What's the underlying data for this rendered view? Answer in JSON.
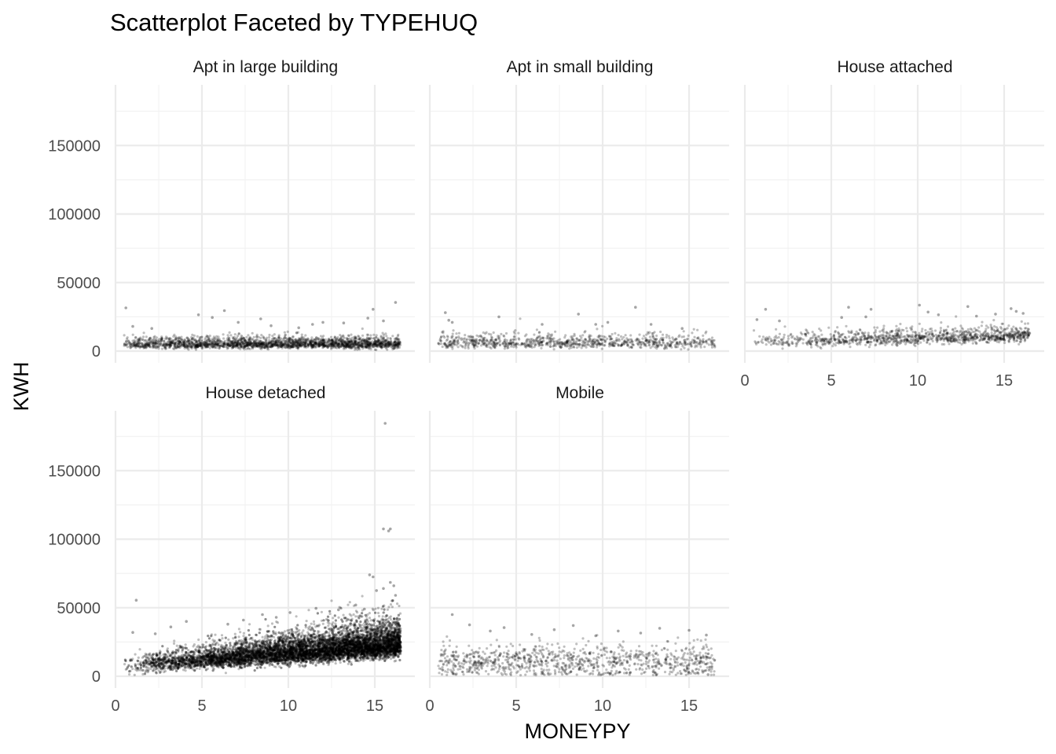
{
  "chart_data": {
    "type": "scatter",
    "title": "Scatterplot Faceted by TYPEHUQ",
    "xlabel": "MONEYPY",
    "ylabel": "KWH",
    "xlim": [
      0,
      17.5
    ],
    "ylim": [
      0,
      190000
    ],
    "x_ticks": [
      0,
      5,
      10,
      15
    ],
    "y_ticks": [
      0,
      50000,
      100000,
      150000
    ],
    "grid": true,
    "point_color": "#000000",
    "point_alpha": 0.25,
    "facets": [
      {
        "name": "Apt in large building",
        "approx_n_points": 2200,
        "x_range": [
          0.5,
          16.5
        ],
        "kwh_typical": 5500,
        "points": [
          [
            0.6,
            31500
          ],
          [
            4.8,
            26500
          ],
          [
            5.6,
            24500
          ],
          [
            6.3,
            29500
          ],
          [
            8.4,
            23500
          ],
          [
            12.0,
            21000
          ],
          [
            14.6,
            24000
          ],
          [
            14.9,
            30500
          ],
          [
            16.2,
            35500
          ],
          [
            11.4,
            19500
          ],
          [
            13.2,
            20500
          ],
          [
            9.0,
            18500
          ],
          [
            2.1,
            16500
          ],
          [
            1.0,
            18000
          ],
          [
            7.1,
            21000
          ],
          [
            15.5,
            22000
          ],
          [
            10.6,
            17000
          ]
        ]
      },
      {
        "name": "Apt in small building",
        "approx_n_points": 900,
        "x_range": [
          0.5,
          16.5
        ],
        "kwh_typical": 6500,
        "points": [
          [
            0.9,
            28000
          ],
          [
            1.1,
            22500
          ],
          [
            4.0,
            25000
          ],
          [
            8.6,
            27000
          ],
          [
            11.9,
            32000
          ],
          [
            12.8,
            19500
          ],
          [
            10.3,
            21000
          ],
          [
            14.6,
            16500
          ],
          [
            6.5,
            19500
          ],
          [
            1.3,
            21000
          ],
          [
            9.6,
            19500
          ]
        ]
      },
      {
        "name": "House attached",
        "approx_n_points": 1100,
        "x_range": [
          0.5,
          16.5
        ],
        "kwh_typical": 8500,
        "points": [
          [
            0.7,
            23000
          ],
          [
            1.2,
            30500
          ],
          [
            2.0,
            22000
          ],
          [
            5.6,
            24500
          ],
          [
            6.0,
            32000
          ],
          [
            7.0,
            25000
          ],
          [
            7.3,
            30500
          ],
          [
            10.1,
            33500
          ],
          [
            10.6,
            28500
          ],
          [
            12.9,
            32500
          ],
          [
            14.5,
            27000
          ],
          [
            15.4,
            31000
          ],
          [
            15.7,
            29000
          ],
          [
            16.1,
            27500
          ],
          [
            13.4,
            25500
          ],
          [
            11.2,
            26500
          ]
        ]
      },
      {
        "name": "House detached",
        "approx_n_points": 9000,
        "x_range": [
          0.5,
          16.5
        ],
        "kwh_typical": 12000,
        "points": [
          [
            1.2,
            55500
          ],
          [
            15.6,
            184500
          ],
          [
            15.5,
            107500
          ],
          [
            15.8,
            106000
          ],
          [
            15.9,
            107500
          ],
          [
            14.7,
            74000
          ],
          [
            14.9,
            72500
          ],
          [
            15.1,
            62500
          ],
          [
            15.5,
            64000
          ],
          [
            15.9,
            68500
          ],
          [
            16.1,
            66000
          ],
          [
            11.6,
            49500
          ],
          [
            12.9,
            48500
          ],
          [
            8.5,
            45000
          ],
          [
            10.1,
            46500
          ],
          [
            4.1,
            40000
          ],
          [
            6.5,
            38000
          ],
          [
            2.3,
            31000
          ],
          [
            13.9,
            52000
          ],
          [
            14.4,
            49000
          ],
          [
            16.0,
            55000
          ],
          [
            16.2,
            59000
          ],
          [
            1.0,
            32000
          ],
          [
            3.2,
            36000
          ],
          [
            7.4,
            41000
          ],
          [
            9.3,
            43000
          ]
        ]
      },
      {
        "name": "Mobile",
        "approx_n_points": 1000,
        "x_range": [
          0.5,
          16.5
        ],
        "kwh_typical": 11000,
        "points": [
          [
            1.3,
            45000
          ],
          [
            2.3,
            37500
          ],
          [
            4.3,
            35500
          ],
          [
            7.2,
            34000
          ],
          [
            8.3,
            37000
          ],
          [
            10.9,
            33000
          ],
          [
            13.3,
            35000
          ],
          [
            15.0,
            33500
          ],
          [
            16.0,
            30000
          ],
          [
            16.1,
            1200
          ],
          [
            15.8,
            3000
          ],
          [
            3.5,
            33000
          ],
          [
            5.9,
            30500
          ],
          [
            12.2,
            31500
          ],
          [
            9.6,
            29500
          ]
        ]
      }
    ]
  }
}
